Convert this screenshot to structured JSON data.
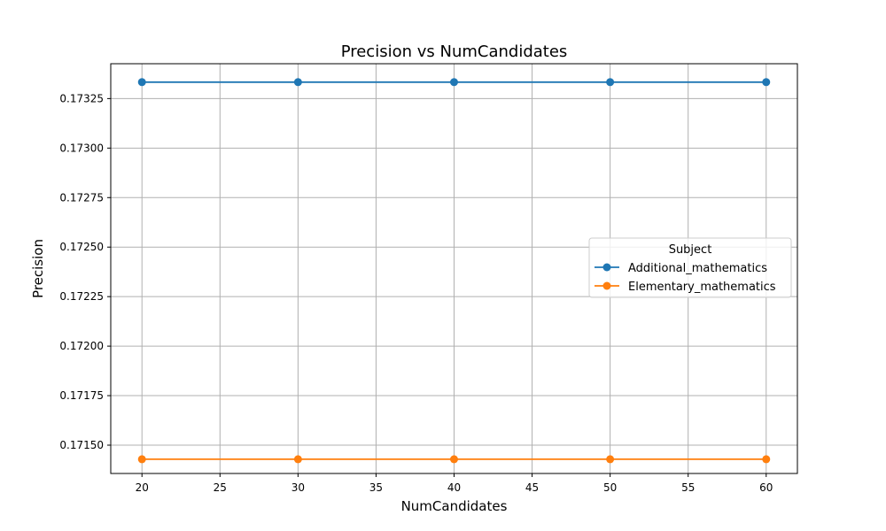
{
  "chart_data": {
    "type": "line",
    "title": "Precision vs NumCandidates",
    "xlabel": "NumCandidates",
    "ylabel": "Precision",
    "x": [
      20,
      30,
      40,
      50,
      60
    ],
    "xlim": [
      18,
      62
    ],
    "ylim": [
      0.171357,
      0.173426
    ],
    "xticks": [
      20,
      25,
      30,
      35,
      40,
      45,
      50,
      55,
      60
    ],
    "yticks": [
      0.1715,
      0.17175,
      0.172,
      0.17225,
      0.1725,
      0.17275,
      0.173,
      0.17325
    ],
    "ytick_labels": [
      "0.17150",
      "0.17175",
      "0.17200",
      "0.17225",
      "0.17250",
      "0.17275",
      "0.17300",
      "0.17325"
    ],
    "grid": true,
    "legend": {
      "title": "Subject",
      "placement": "center-right"
    },
    "series": [
      {
        "name": "Additional_mathematics",
        "color": "#1f77b4",
        "values": [
          0.173333,
          0.173333,
          0.173333,
          0.173333,
          0.173333
        ]
      },
      {
        "name": "Elementary_mathematics",
        "color": "#ff7f0e",
        "values": [
          0.171429,
          0.171429,
          0.171429,
          0.171429,
          0.171429
        ]
      }
    ]
  }
}
